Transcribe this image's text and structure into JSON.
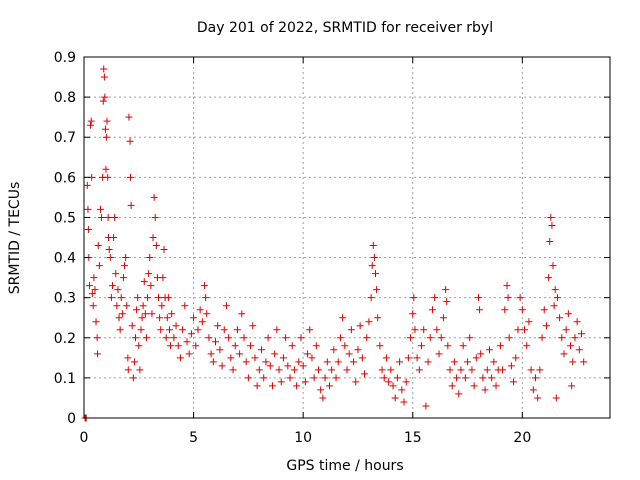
{
  "chart_data": {
    "type": "scatter",
    "title": "Day 201 of 2022, SRMTID for receiver rbyl",
    "xlabel": "GPS time / hours",
    "ylabel": "SRMTID / TECUs",
    "xlim": [
      0,
      24
    ],
    "ylim": [
      0,
      0.9
    ],
    "xticks": [
      0,
      5,
      10,
      15,
      20
    ],
    "yticks": [
      0,
      0.1,
      0.2,
      0.3,
      0.4,
      0.5,
      0.6,
      0.7,
      0.8,
      0.9
    ],
    "xtick_labels": [
      "0",
      "5",
      "10",
      "15",
      "20"
    ],
    "ytick_labels": [
      "0",
      "0.1",
      "0.2",
      "0.3",
      "0.4",
      "0.5",
      "0.6",
      "0.7",
      "0.8",
      "0.9"
    ],
    "grid": true,
    "marker": "+",
    "color": "#e00000",
    "series": [
      {
        "name": "SRMTID",
        "points": [
          [
            0.05,
            0.0
          ],
          [
            0.08,
            0.0
          ],
          [
            0.1,
            0.0
          ],
          [
            0.15,
            0.58
          ],
          [
            0.18,
            0.52
          ],
          [
            0.2,
            0.47
          ],
          [
            0.22,
            0.4
          ],
          [
            0.25,
            0.33
          ],
          [
            0.3,
            0.73
          ],
          [
            0.33,
            0.74
          ],
          [
            0.35,
            0.6
          ],
          [
            0.38,
            0.31
          ],
          [
            0.42,
            0.28
          ],
          [
            0.45,
            0.35
          ],
          [
            0.5,
            0.32
          ],
          [
            0.55,
            0.24
          ],
          [
            0.6,
            0.2
          ],
          [
            0.62,
            0.16
          ],
          [
            0.65,
            0.43
          ],
          [
            0.7,
            0.38
          ],
          [
            0.75,
            0.52
          ],
          [
            0.8,
            0.5
          ],
          [
            0.85,
            0.6
          ],
          [
            0.88,
            0.79
          ],
          [
            0.9,
            0.87
          ],
          [
            0.93,
            0.85
          ],
          [
            0.95,
            0.8
          ],
          [
            0.98,
            0.72
          ],
          [
            1.0,
            0.62
          ],
          [
            1.02,
            0.7
          ],
          [
            1.05,
            0.74
          ],
          [
            1.08,
            0.6
          ],
          [
            1.1,
            0.5
          ],
          [
            1.12,
            0.45
          ],
          [
            1.15,
            0.42
          ],
          [
            1.2,
            0.4
          ],
          [
            1.25,
            0.3
          ],
          [
            1.3,
            0.33
          ],
          [
            1.35,
            0.45
          ],
          [
            1.4,
            0.5
          ],
          [
            1.45,
            0.36
          ],
          [
            1.5,
            0.28
          ],
          [
            1.55,
            0.32
          ],
          [
            1.6,
            0.25
          ],
          [
            1.65,
            0.22
          ],
          [
            1.7,
            0.3
          ],
          [
            1.75,
            0.26
          ],
          [
            1.8,
            0.35
          ],
          [
            1.85,
            0.38
          ],
          [
            1.9,
            0.4
          ],
          [
            1.95,
            0.28
          ],
          [
            2.0,
            0.15
          ],
          [
            2.02,
            0.12
          ],
          [
            2.05,
            0.75
          ],
          [
            2.1,
            0.69
          ],
          [
            2.12,
            0.6
          ],
          [
            2.15,
            0.53
          ],
          [
            2.2,
            0.23
          ],
          [
            2.25,
            0.1
          ],
          [
            2.3,
            0.14
          ],
          [
            2.35,
            0.2
          ],
          [
            2.4,
            0.27
          ],
          [
            2.45,
            0.3
          ],
          [
            2.5,
            0.18
          ],
          [
            2.55,
            0.12
          ],
          [
            2.6,
            0.22
          ],
          [
            2.65,
            0.25
          ],
          [
            2.7,
            0.28
          ],
          [
            2.75,
            0.34
          ],
          [
            2.8,
            0.26
          ],
          [
            2.85,
            0.2
          ],
          [
            2.9,
            0.3
          ],
          [
            2.95,
            0.36
          ],
          [
            3.0,
            0.4
          ],
          [
            3.05,
            0.33
          ],
          [
            3.1,
            0.26
          ],
          [
            3.15,
            0.45
          ],
          [
            3.2,
            0.55
          ],
          [
            3.25,
            0.5
          ],
          [
            3.3,
            0.43
          ],
          [
            3.35,
            0.35
          ],
          [
            3.4,
            0.3
          ],
          [
            3.45,
            0.25
          ],
          [
            3.5,
            0.22
          ],
          [
            3.55,
            0.28
          ],
          [
            3.6,
            0.35
          ],
          [
            3.65,
            0.42
          ],
          [
            3.7,
            0.3
          ],
          [
            3.75,
            0.2
          ],
          [
            3.8,
            0.25
          ],
          [
            3.85,
            0.3
          ],
          [
            3.9,
            0.22
          ],
          [
            3.95,
            0.18
          ],
          [
            4.0,
            0.26
          ],
          [
            4.1,
            0.2
          ],
          [
            4.2,
            0.23
          ],
          [
            4.3,
            0.18
          ],
          [
            4.4,
            0.15
          ],
          [
            4.5,
            0.22
          ],
          [
            4.6,
            0.28
          ],
          [
            4.7,
            0.19
          ],
          [
            4.8,
            0.16
          ],
          [
            4.9,
            0.21
          ],
          [
            5.0,
            0.25
          ],
          [
            5.1,
            0.18
          ],
          [
            5.2,
            0.22
          ],
          [
            5.3,
            0.27
          ],
          [
            5.4,
            0.24
          ],
          [
            5.5,
            0.33
          ],
          [
            5.55,
            0.3
          ],
          [
            5.6,
            0.26
          ],
          [
            5.7,
            0.2
          ],
          [
            5.8,
            0.16
          ],
          [
            5.9,
            0.14
          ],
          [
            6.0,
            0.19
          ],
          [
            6.1,
            0.23
          ],
          [
            6.2,
            0.17
          ],
          [
            6.3,
            0.13
          ],
          [
            6.4,
            0.22
          ],
          [
            6.5,
            0.28
          ],
          [
            6.6,
            0.2
          ],
          [
            6.7,
            0.15
          ],
          [
            6.8,
            0.12
          ],
          [
            6.9,
            0.18
          ],
          [
            7.0,
            0.22
          ],
          [
            7.1,
            0.16
          ],
          [
            7.2,
            0.26
          ],
          [
            7.3,
            0.2
          ],
          [
            7.4,
            0.14
          ],
          [
            7.5,
            0.1
          ],
          [
            7.6,
            0.18
          ],
          [
            7.7,
            0.23
          ],
          [
            7.8,
            0.15
          ],
          [
            7.9,
            0.08
          ],
          [
            8.0,
            0.12
          ],
          [
            8.1,
            0.17
          ],
          [
            8.2,
            0.1
          ],
          [
            8.3,
            0.14
          ],
          [
            8.4,
            0.2
          ],
          [
            8.5,
            0.13
          ],
          [
            8.6,
            0.08
          ],
          [
            8.7,
            0.16
          ],
          [
            8.8,
            0.22
          ],
          [
            8.9,
            0.12
          ],
          [
            9.0,
            0.09
          ],
          [
            9.1,
            0.15
          ],
          [
            9.2,
            0.2
          ],
          [
            9.3,
            0.13
          ],
          [
            9.4,
            0.1
          ],
          [
            9.5,
            0.18
          ],
          [
            9.6,
            0.12
          ],
          [
            9.7,
            0.08
          ],
          [
            9.8,
            0.14
          ],
          [
            9.9,
            0.2
          ],
          [
            10.0,
            0.13
          ],
          [
            10.1,
            0.09
          ],
          [
            10.2,
            0.16
          ],
          [
            10.3,
            0.22
          ],
          [
            10.4,
            0.15
          ],
          [
            10.5,
            0.1
          ],
          [
            10.6,
            0.18
          ],
          [
            10.7,
            0.12
          ],
          [
            10.8,
            0.07
          ],
          [
            10.9,
            0.05
          ],
          [
            11.0,
            0.1
          ],
          [
            11.1,
            0.14
          ],
          [
            11.2,
            0.08
          ],
          [
            11.3,
            0.12
          ],
          [
            11.4,
            0.17
          ],
          [
            11.5,
            0.1
          ],
          [
            11.6,
            0.14
          ],
          [
            11.7,
            0.2
          ],
          [
            11.8,
            0.25
          ],
          [
            11.9,
            0.18
          ],
          [
            12.0,
            0.12
          ],
          [
            12.1,
            0.16
          ],
          [
            12.2,
            0.22
          ],
          [
            12.3,
            0.14
          ],
          [
            12.4,
            0.09
          ],
          [
            12.5,
            0.17
          ],
          [
            12.6,
            0.23
          ],
          [
            12.7,
            0.15
          ],
          [
            12.8,
            0.11
          ],
          [
            12.9,
            0.2
          ],
          [
            13.0,
            0.24
          ],
          [
            13.1,
            0.3
          ],
          [
            13.15,
            0.38
          ],
          [
            13.2,
            0.43
          ],
          [
            13.25,
            0.4
          ],
          [
            13.3,
            0.36
          ],
          [
            13.35,
            0.32
          ],
          [
            13.4,
            0.25
          ],
          [
            13.5,
            0.18
          ],
          [
            13.6,
            0.12
          ],
          [
            13.7,
            0.1
          ],
          [
            13.8,
            0.15
          ],
          [
            13.9,
            0.09
          ],
          [
            14.0,
            0.12
          ],
          [
            14.1,
            0.08
          ],
          [
            14.2,
            0.05
          ],
          [
            14.3,
            0.1
          ],
          [
            14.4,
            0.14
          ],
          [
            14.5,
            0.07
          ],
          [
            14.6,
            0.04
          ],
          [
            14.7,
            0.09
          ],
          [
            14.8,
            0.15
          ],
          [
            14.9,
            0.2
          ],
          [
            15.0,
            0.26
          ],
          [
            15.05,
            0.3
          ],
          [
            15.1,
            0.22
          ],
          [
            15.2,
            0.15
          ],
          [
            15.3,
            0.12
          ],
          [
            15.4,
            0.18
          ],
          [
            15.5,
            0.22
          ],
          [
            15.6,
            0.03
          ],
          [
            15.7,
            0.14
          ],
          [
            15.8,
            0.2
          ],
          [
            15.9,
            0.27
          ],
          [
            16.0,
            0.3
          ],
          [
            16.1,
            0.22
          ],
          [
            16.2,
            0.16
          ],
          [
            16.3,
            0.2
          ],
          [
            16.4,
            0.25
          ],
          [
            16.5,
            0.32
          ],
          [
            16.55,
            0.29
          ],
          [
            16.6,
            0.18
          ],
          [
            16.7,
            0.12
          ],
          [
            16.8,
            0.08
          ],
          [
            16.9,
            0.14
          ],
          [
            17.0,
            0.1
          ],
          [
            17.1,
            0.06
          ],
          [
            17.2,
            0.12
          ],
          [
            17.3,
            0.18
          ],
          [
            17.4,
            0.1
          ],
          [
            17.5,
            0.14
          ],
          [
            17.6,
            0.2
          ],
          [
            17.7,
            0.12
          ],
          [
            17.8,
            0.08
          ],
          [
            17.9,
            0.15
          ],
          [
            18.0,
            0.3
          ],
          [
            18.05,
            0.27
          ],
          [
            18.1,
            0.16
          ],
          [
            18.2,
            0.1
          ],
          [
            18.3,
            0.07
          ],
          [
            18.4,
            0.12
          ],
          [
            18.5,
            0.17
          ],
          [
            18.6,
            0.1
          ],
          [
            18.7,
            0.14
          ],
          [
            18.8,
            0.08
          ],
          [
            18.9,
            0.12
          ],
          [
            19.0,
            0.18
          ],
          [
            19.1,
            0.12
          ],
          [
            19.2,
            0.27
          ],
          [
            19.3,
            0.33
          ],
          [
            19.35,
            0.3
          ],
          [
            19.4,
            0.2
          ],
          [
            19.5,
            0.13
          ],
          [
            19.6,
            0.09
          ],
          [
            19.7,
            0.15
          ],
          [
            19.8,
            0.22
          ],
          [
            19.9,
            0.3
          ],
          [
            20.0,
            0.27
          ],
          [
            20.1,
            0.22
          ],
          [
            20.2,
            0.18
          ],
          [
            20.3,
            0.24
          ],
          [
            20.4,
            0.12
          ],
          [
            20.5,
            0.07
          ],
          [
            20.6,
            0.1
          ],
          [
            20.7,
            0.05
          ],
          [
            20.8,
            0.12
          ],
          [
            20.9,
            0.2
          ],
          [
            21.0,
            0.27
          ],
          [
            21.1,
            0.23
          ],
          [
            21.2,
            0.35
          ],
          [
            21.25,
            0.44
          ],
          [
            21.3,
            0.5
          ],
          [
            21.35,
            0.48
          ],
          [
            21.4,
            0.38
          ],
          [
            21.45,
            0.28
          ],
          [
            21.5,
            0.32
          ],
          [
            21.55,
            0.05
          ],
          [
            21.6,
            0.3
          ],
          [
            21.7,
            0.25
          ],
          [
            21.8,
            0.2
          ],
          [
            21.9,
            0.16
          ],
          [
            22.0,
            0.22
          ],
          [
            22.1,
            0.26
          ],
          [
            22.2,
            0.18
          ],
          [
            22.25,
            0.08
          ],
          [
            22.3,
            0.14
          ],
          [
            22.4,
            0.2
          ],
          [
            22.5,
            0.24
          ],
          [
            22.6,
            0.17
          ],
          [
            22.7,
            0.21
          ],
          [
            22.8,
            0.14
          ]
        ]
      }
    ]
  }
}
